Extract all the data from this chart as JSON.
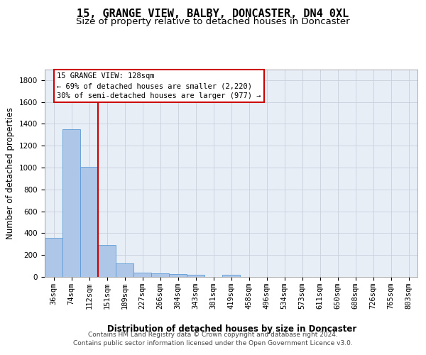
{
  "title": "15, GRANGE VIEW, BALBY, DONCASTER, DN4 0XL",
  "subtitle": "Size of property relative to detached houses in Doncaster",
  "xlabel": "Distribution of detached houses by size in Doncaster",
  "ylabel": "Number of detached properties",
  "categories": [
    "36sqm",
    "74sqm",
    "112sqm",
    "151sqm",
    "189sqm",
    "227sqm",
    "266sqm",
    "304sqm",
    "343sqm",
    "381sqm",
    "419sqm",
    "458sqm",
    "496sqm",
    "534sqm",
    "573sqm",
    "611sqm",
    "650sqm",
    "688sqm",
    "726sqm",
    "765sqm",
    "803sqm"
  ],
  "values": [
    355,
    1350,
    1010,
    290,
    125,
    40,
    32,
    25,
    20,
    0,
    20,
    0,
    0,
    0,
    0,
    0,
    0,
    0,
    0,
    0,
    0
  ],
  "bar_color": "#aec6e8",
  "bar_edge_color": "#5b9bd5",
  "grid_color": "#c8d0dc",
  "background_color": "#e8eef5",
  "property_line_color": "#cc0000",
  "annotation_box_text_line1": "15 GRANGE VIEW: 128sqm",
  "annotation_box_text_line2": "← 69% of detached houses are smaller (2,220)",
  "annotation_box_text_line3": "30% of semi-detached houses are larger (977) →",
  "annotation_box_color": "#cc0000",
  "footer_line1": "Contains HM Land Registry data © Crown copyright and database right 2024.",
  "footer_line2": "Contains public sector information licensed under the Open Government Licence v3.0.",
  "ylim": [
    0,
    1900
  ],
  "yticks": [
    0,
    200,
    400,
    600,
    800,
    1000,
    1200,
    1400,
    1600,
    1800
  ],
  "title_fontsize": 11,
  "subtitle_fontsize": 9.5,
  "axis_label_fontsize": 8.5,
  "tick_fontsize": 7.5,
  "annotation_fontsize": 7.5,
  "footer_fontsize": 6.5
}
